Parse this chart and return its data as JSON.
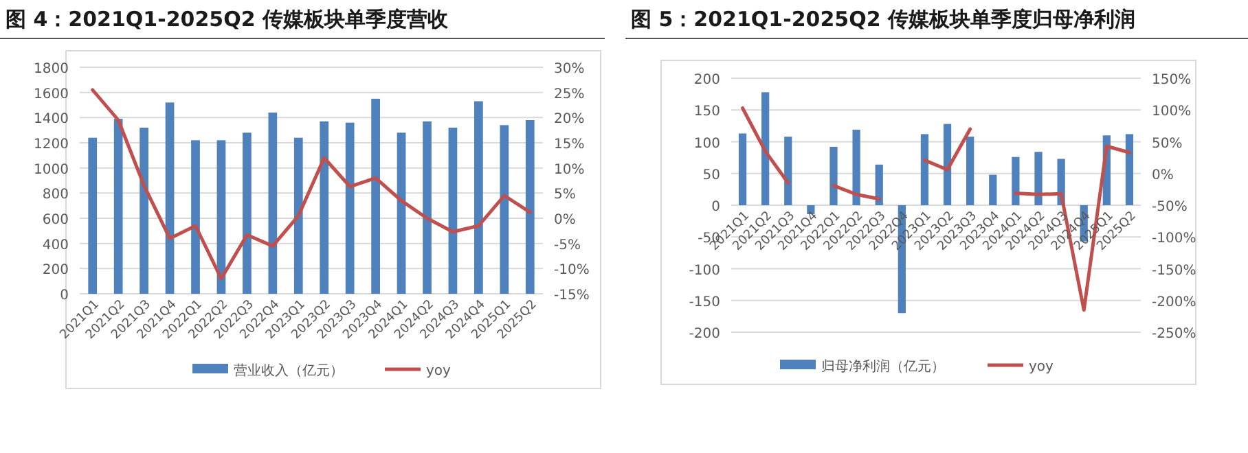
{
  "chart_data": [
    {
      "type": "bar",
      "title": "图 4：2021Q1-2025Q2 传媒板块单季度营收",
      "categories": [
        "2021Q1",
        "2021Q2",
        "2021Q3",
        "2021Q4",
        "2022Q1",
        "2022Q2",
        "2022Q3",
        "2022Q4",
        "2023Q1",
        "2023Q2",
        "2023Q3",
        "2023Q4",
        "2024Q1",
        "2024Q2",
        "2024Q3",
        "2024Q4",
        "2025Q1",
        "2025Q2"
      ],
      "series": [
        {
          "name": "营业收入（亿元）",
          "color": "#4f81bd",
          "values": [
            1240,
            1390,
            1320,
            1520,
            1220,
            1220,
            1280,
            1440,
            1240,
            1370,
            1360,
            1550,
            1280,
            1370,
            1320,
            1530,
            1340,
            1380
          ]
        },
        {
          "name": "yoy",
          "type": "line",
          "axis": "y2",
          "color": "#c0504d",
          "values": [
            25.5,
            19.5,
            6.5,
            -4,
            -1.5,
            -12,
            -3.3,
            -5.5,
            0.5,
            12,
            6.3,
            8,
            3.5,
            0,
            -2.7,
            -1.5,
            4.5,
            1.2
          ]
        }
      ],
      "ylim": [
        0,
        1800
      ],
      "yticks": [
        0,
        200,
        400,
        600,
        800,
        1000,
        1200,
        1400,
        1600,
        1800
      ],
      "y2lim": [
        -15,
        30
      ],
      "y2ticks": [
        {
          "value": -15,
          "label": "-15%"
        },
        {
          "value": -10,
          "label": "-10%"
        },
        {
          "value": -5,
          "label": "-5%"
        },
        {
          "value": 0,
          "label": "0%"
        },
        {
          "value": 5,
          "label": "5%"
        },
        {
          "value": 10,
          "label": "10%"
        },
        {
          "value": 15,
          "label": "15%"
        },
        {
          "value": 20,
          "label": "20%"
        },
        {
          "value": 25,
          "label": "25%"
        },
        {
          "value": 30,
          "label": "30%"
        }
      ],
      "grid": "y",
      "legend": "bottom"
    },
    {
      "type": "bar",
      "title": "图 5：2021Q1-2025Q2 传媒板块单季度归母净利润",
      "categories": [
        "2021Q1",
        "2021Q2",
        "2021Q3",
        "2021Q4",
        "2022Q1",
        "2022Q2",
        "2022Q3",
        "2022Q4",
        "2023Q1",
        "2023Q2",
        "2023Q3",
        "2023Q4",
        "2024Q1",
        "2024Q2",
        "2024Q3",
        "2024Q4",
        "2025Q1",
        "2025Q2"
      ],
      "series": [
        {
          "name": "归母净利润（亿元）",
          "color": "#4f81bd",
          "values": [
            113,
            178,
            108,
            -14,
            92,
            119,
            64,
            -170,
            112,
            128,
            108,
            48,
            76,
            84,
            73,
            -57,
            110,
            112
          ]
        },
        {
          "name": "yoy",
          "type": "line",
          "axis": "y2",
          "color": "#c0504d",
          "values": [
            103,
            35,
            -15,
            null,
            -19,
            -33,
            -40,
            null,
            21,
            6,
            70,
            null,
            -31,
            -33,
            -32,
            -215,
            43,
            33
          ]
        }
      ],
      "ylim": [
        -200,
        200
      ],
      "yticks": [
        -200,
        -150,
        -100,
        -50,
        0,
        50,
        100,
        150,
        200
      ],
      "y2lim": [
        -250,
        150
      ],
      "y2ticks": [
        {
          "value": -250,
          "label": "-250%"
        },
        {
          "value": -200,
          "label": "-200%"
        },
        {
          "value": -150,
          "label": "-150%"
        },
        {
          "value": -100,
          "label": "-100%"
        },
        {
          "value": -50,
          "label": "-50%"
        },
        {
          "value": 0,
          "label": "0%"
        },
        {
          "value": 50,
          "label": "50%"
        },
        {
          "value": 100,
          "label": "100%"
        },
        {
          "value": 150,
          "label": "150%"
        }
      ],
      "grid": "y",
      "legend": "bottom"
    }
  ]
}
